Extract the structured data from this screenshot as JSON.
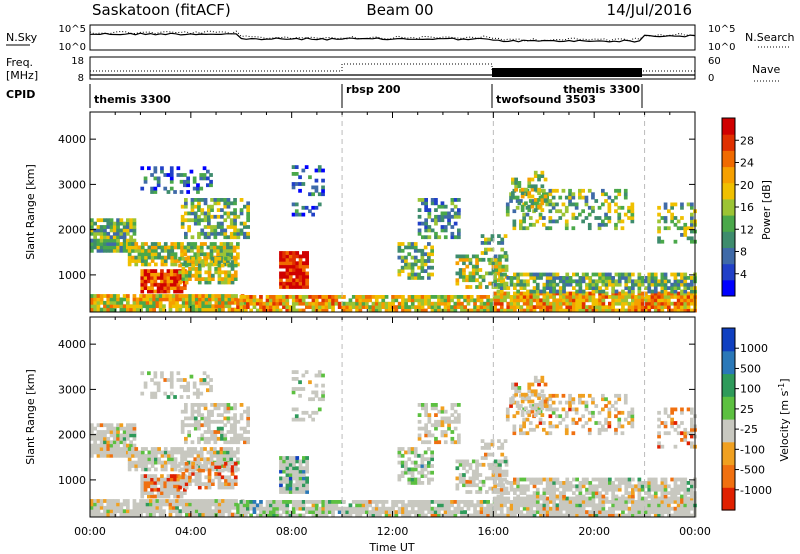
{
  "header": {
    "radar": "Saskatoon (fitACF)",
    "beam": "Beam 00",
    "date": "14/Jul/2016"
  },
  "panels": {
    "nsky_label": "N.Sky",
    "nsearch_label": "N.Search",
    "nsky_ticks": [
      "10^5",
      "10^0"
    ],
    "nsearch_ticks": [
      "10^5",
      "10^0"
    ],
    "freq_label_line1": "Freq.",
    "freq_label_line2": "[MHz]",
    "freq_ticks": [
      "18",
      "8"
    ],
    "nave_label": "Nave",
    "nave_ticks": [
      "60",
      "0"
    ],
    "cpid_label": "CPID",
    "cpid_segments": [
      {
        "name": "themis 3300",
        "start_h": 0
      },
      {
        "name": "rbsp 200",
        "start_h": 10
      },
      {
        "name": "twofsound 3503",
        "start_h": 16
      },
      {
        "name": "themis 3300",
        "start_h": 22
      }
    ]
  },
  "chart_data": [
    {
      "type": "heatmap",
      "name": "power",
      "ylabel": "Slant Range [km]",
      "yticks": [
        1000,
        2000,
        3000,
        4000
      ],
      "ylim": [
        180,
        4600
      ],
      "xlim": [
        0,
        24
      ],
      "colorbar_label": "Power [dB]",
      "colorbar_ticks": [
        "28",
        "24",
        "20",
        "16",
        "12",
        "8",
        "4"
      ],
      "colors": [
        "#0000ff",
        "#2140c8",
        "#3f6aa8",
        "#3e8c6d",
        "#4aa84a",
        "#9cc434",
        "#f0c000",
        "#f6a000",
        "#f06a00",
        "#e03000",
        "#d00000"
      ]
    },
    {
      "type": "heatmap",
      "name": "velocity",
      "ylabel": "Slant Range [km]",
      "yticks": [
        1000,
        2000,
        3000,
        4000
      ],
      "ylim": [
        180,
        4600
      ],
      "xlim": [
        0,
        24
      ],
      "xlabel": "Time UT",
      "xticks": [
        "00:00",
        "04:00",
        "08:00",
        "12:00",
        "16:00",
        "20:00",
        "00:00"
      ],
      "colorbar_label": "Velocity [m s^-1]",
      "colorbar_ticks": [
        "1000",
        "500",
        "100",
        "25",
        "-25",
        "-100",
        "-500",
        "-1000"
      ],
      "colors": [
        "#1040c0",
        "#2a78b8",
        "#2e9a5a",
        "#5cc040",
        "#c8c8c0",
        "#f0a020",
        "#f07010",
        "#e02000"
      ]
    }
  ]
}
